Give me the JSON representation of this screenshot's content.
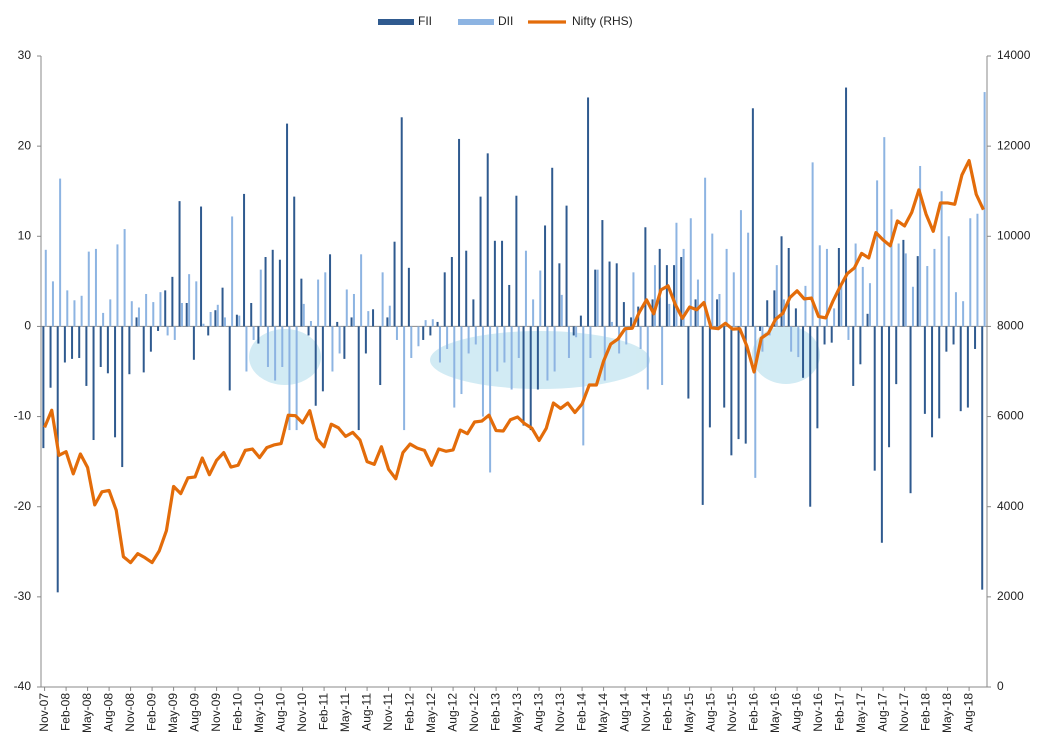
{
  "chart_data": {
    "type": "bar",
    "categories": [
      "Nov-07",
      null,
      null,
      "Feb-08",
      null,
      null,
      "May-08",
      null,
      null,
      "Aug-08",
      null,
      null,
      "Nov-08",
      null,
      null,
      "Feb-09",
      null,
      null,
      "May-09",
      null,
      null,
      "Aug-09",
      null,
      null,
      "Nov-09",
      null,
      null,
      "Feb-10",
      null,
      null,
      "May-10",
      null,
      null,
      "Aug-10",
      null,
      null,
      "Nov-10",
      null,
      null,
      "Feb-11",
      null,
      null,
      "May-11",
      null,
      null,
      "Aug-11",
      null,
      null,
      "Nov-11",
      null,
      null,
      "Feb-12",
      null,
      null,
      "May-12",
      null,
      null,
      "Aug-12",
      null,
      null,
      "Nov-12",
      null,
      null,
      "Feb-13",
      null,
      null,
      "May-13",
      null,
      null,
      "Aug-13",
      null,
      null,
      "Nov-13",
      null,
      null,
      "Feb-14",
      null,
      null,
      "May-14",
      null,
      null,
      "Aug-14",
      null,
      null,
      "Nov-14",
      null,
      null,
      "Feb-15",
      null,
      null,
      "May-15",
      null,
      null,
      "Aug-15",
      null,
      null,
      "Nov-15",
      null,
      null,
      "Feb-16",
      null,
      null,
      "May-16",
      null,
      null,
      "Aug-16",
      null,
      null,
      "Nov-16",
      null,
      null,
      "Feb-17",
      null,
      null,
      "May-17",
      null,
      null,
      "Aug-17",
      null,
      null,
      "Nov-17",
      null,
      null,
      "Feb-18",
      null,
      null,
      "May-18",
      null,
      null,
      "Aug-18",
      null,
      null
    ],
    "series": [
      {
        "name": "FII",
        "type": "bar",
        "color": "#2f5a8f",
        "values": [
          -13.5,
          -6.8,
          -29.5,
          -4.0,
          -3.6,
          -3.5,
          -6.6,
          -12.6,
          -4.5,
          -5.2,
          -12.3,
          -15.6,
          -5.3,
          1.0,
          -5.1,
          -2.8,
          -0.5,
          4.0,
          5.5,
          13.9,
          2.6,
          -3.7,
          13.3,
          -1.0,
          1.8,
          4.3,
          -7.1,
          1.3,
          14.7,
          2.6,
          -1.9,
          7.7,
          8.5,
          7.4,
          22.5,
          14.4,
          5.3,
          -1.0,
          -8.8,
          -7.2,
          8.0,
          0.5,
          -3.6,
          1.0,
          -11.5,
          -3.0,
          1.9,
          -6.5,
          1.0,
          9.4,
          23.2,
          6.5,
          0.0,
          -1.5,
          -1.0,
          0.5,
          6.0,
          7.7,
          20.8,
          8.4,
          3.0,
          14.4,
          19.2,
          9.5,
          9.5,
          4.6,
          14.5,
          -11.0,
          -11.5,
          -7.0,
          11.2,
          17.6,
          7.0,
          13.4,
          -1.0,
          1.2,
          25.4,
          6.3,
          11.8,
          7.2,
          7.0,
          2.7,
          1.0,
          2.2,
          11.0,
          3.0,
          8.6,
          6.8,
          6.8,
          7.7,
          -8.0,
          3.0,
          -19.8,
          -11.2,
          3.0,
          -9.0,
          -14.3,
          -12.5,
          -13.0,
          24.2,
          -0.5,
          2.9,
          4.0,
          10.0,
          8.7,
          2.0,
          -5.7,
          -20.0,
          -11.3,
          -2.0,
          -1.8,
          8.7,
          26.5,
          -6.6,
          -4.2,
          1.4,
          -16.0,
          -24.0,
          -13.4,
          -6.4,
          9.6,
          -18.5,
          7.8,
          -9.7,
          -12.3,
          -10.2,
          -2.8,
          -2.0,
          -9.4,
          -9.0,
          -2.5,
          -29.2
        ]
      },
      {
        "name": "DII",
        "type": "bar",
        "color": "#8db4e2",
        "values": [
          8.5,
          5.0,
          16.4,
          4.0,
          2.9,
          3.4,
          8.3,
          8.6,
          1.5,
          3.0,
          9.1,
          10.8,
          2.8,
          2.1,
          3.6,
          2.7,
          3.8,
          -1.0,
          -1.5,
          2.6,
          5.8,
          5.0,
          0.3,
          1.6,
          2.4,
          1.0,
          12.2,
          1.2,
          -5.0,
          -1.5,
          6.3,
          -4.5,
          -6.0,
          -4.5,
          -11.5,
          -11.5,
          2.5,
          0.6,
          5.2,
          6.0,
          -5.0,
          -3.0,
          4.1,
          3.6,
          8.0,
          1.7,
          0.0,
          6.0,
          2.3,
          -1.5,
          -11.5,
          -3.5,
          -2.2,
          0.7,
          0.8,
          -4.0,
          -2.5,
          -9.0,
          -7.5,
          -3.0,
          -2.0,
          -10.0,
          -16.2,
          -5.0,
          -4.0,
          -7.0,
          -3.5,
          8.4,
          3.0,
          6.2,
          -6.0,
          -5.0,
          3.5,
          -3.5,
          -1.2,
          -13.2,
          -3.5,
          6.3,
          -6.0,
          0.5,
          -3.0,
          -2.0,
          6.0,
          -2.5,
          -7.0,
          6.8,
          -6.5,
          2.5,
          11.5,
          8.6,
          12.0,
          5.2,
          16.5,
          10.3,
          3.6,
          8.6,
          6.0,
          12.9,
          10.4,
          -16.8,
          -2.8,
          -1.0,
          6.8,
          3.0,
          -2.8,
          -3.4,
          4.5,
          18.2,
          9.0,
          8.6,
          2.0,
          4.5,
          -1.5,
          9.2,
          6.6,
          4.8,
          16.2,
          21.0,
          13.0,
          9.2,
          8.1,
          4.4,
          17.8,
          6.7,
          8.6,
          15.0,
          10.0,
          3.8,
          2.8,
          12.0,
          12.5,
          26.0
        ]
      },
      {
        "name": "Nifty (RHS)",
        "type": "line",
        "axis": "y2",
        "color": "#e36c0a",
        "values": [
          5760,
          6140,
          5140,
          5220,
          4730,
          5170,
          4870,
          4040,
          4330,
          4360,
          3920,
          2890,
          2760,
          2960,
          2870,
          2760,
          3020,
          3470,
          4450,
          4290,
          4640,
          4660,
          5080,
          4710,
          5030,
          5200,
          4880,
          4920,
          5250,
          5280,
          5090,
          5310,
          5370,
          5400,
          6030,
          6020,
          5860,
          6130,
          5510,
          5330,
          5830,
          5750,
          5560,
          5650,
          5480,
          5000,
          4940,
          5330,
          4830,
          4620,
          5200,
          5390,
          5300,
          5250,
          4920,
          5280,
          5230,
          5260,
          5700,
          5620,
          5880,
          5900,
          6030,
          5690,
          5680,
          5930,
          5990,
          5840,
          5740,
          5470,
          5740,
          6300,
          6180,
          6300,
          6090,
          6280,
          6700,
          6700,
          7230,
          7610,
          7720,
          7950,
          7960,
          8320,
          8590,
          8280,
          8810,
          8900,
          8490,
          8180,
          8430,
          8370,
          8530,
          7970,
          7950,
          8070,
          7940,
          7950,
          7560,
          6990,
          7740,
          7850,
          8160,
          8290,
          8640,
          8790,
          8610,
          8630,
          8220,
          8190,
          8560,
          8880,
          9170,
          9300,
          9620,
          9520,
          10080,
          9920,
          9790,
          10340,
          10230,
          10530,
          11030,
          10490,
          10110,
          10740,
          10740,
          10710,
          11360,
          11680,
          10930,
          10590
        ]
      }
    ],
    "ylim": [
      -40,
      30
    ],
    "yticks": [
      -40,
      -30,
      -20,
      -10,
      0,
      10,
      20,
      30
    ],
    "y2lim": [
      0,
      14000
    ],
    "y2ticks": [
      0,
      2000,
      4000,
      6000,
      8000,
      10000,
      12000,
      14000
    ],
    "legend": "top",
    "grid": false
  }
}
